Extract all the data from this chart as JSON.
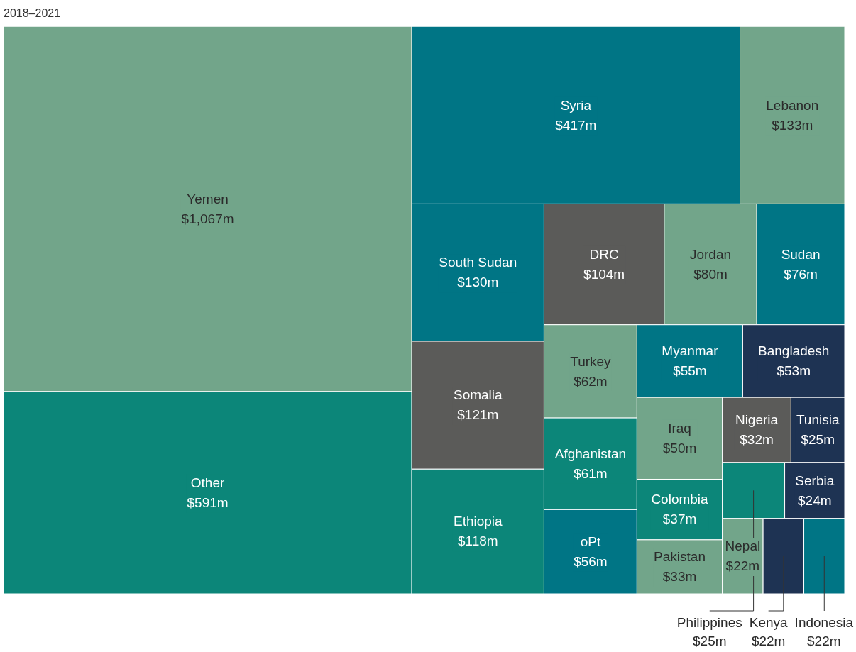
{
  "chart_data": {
    "type": "other",
    "title": "2018–2021",
    "categories": [
      "Yemen",
      "Other",
      "Syria",
      "Lebanon",
      "South Sudan",
      "Somalia",
      "Ethiopia",
      "DRC",
      "Jordan",
      "Sudan",
      "Turkey",
      "Afghanistan",
      "oPt",
      "Myanmar",
      "Bangladesh",
      "Iraq",
      "Colombia",
      "Pakistan",
      "Nigeria",
      "Tunisia",
      "Philippines",
      "Serbia",
      "Nepal",
      "Kenya",
      "Indonesia"
    ],
    "values": [
      1067,
      591,
      417,
      133,
      130,
      121,
      118,
      104,
      80,
      76,
      62,
      61,
      56,
      55,
      53,
      50,
      37,
      33,
      32,
      25,
      25,
      24,
      22,
      22,
      22
    ],
    "value_labels": [
      "$1,067m",
      "$591m",
      "$417m",
      "$133m",
      "$130m",
      "$121m",
      "$118m",
      "$104m",
      "$80m",
      "$76m",
      "$62m",
      "$61m",
      "$56m",
      "$55m",
      "$53m",
      "$50m",
      "$37m",
      "$33m",
      "$32m",
      "$25m",
      "$25m",
      "$24m",
      "$22m",
      "$22m",
      "$22m"
    ],
    "colors": [
      "#72a58a",
      "#0c8679",
      "#007585",
      "#72a58a",
      "#007585",
      "#5b5b59",
      "#0c8679",
      "#5b5b59",
      "#72a58a",
      "#007585",
      "#72a58a",
      "#0c8679",
      "#007585",
      "#007585",
      "#1e3353",
      "#72a58a",
      "#0c8679",
      "#72a58a",
      "#5b5b59",
      "#1e3353",
      "#0c8679",
      "#1e3353",
      "#72a58a",
      "#1e3353",
      "#007585"
    ]
  }
}
